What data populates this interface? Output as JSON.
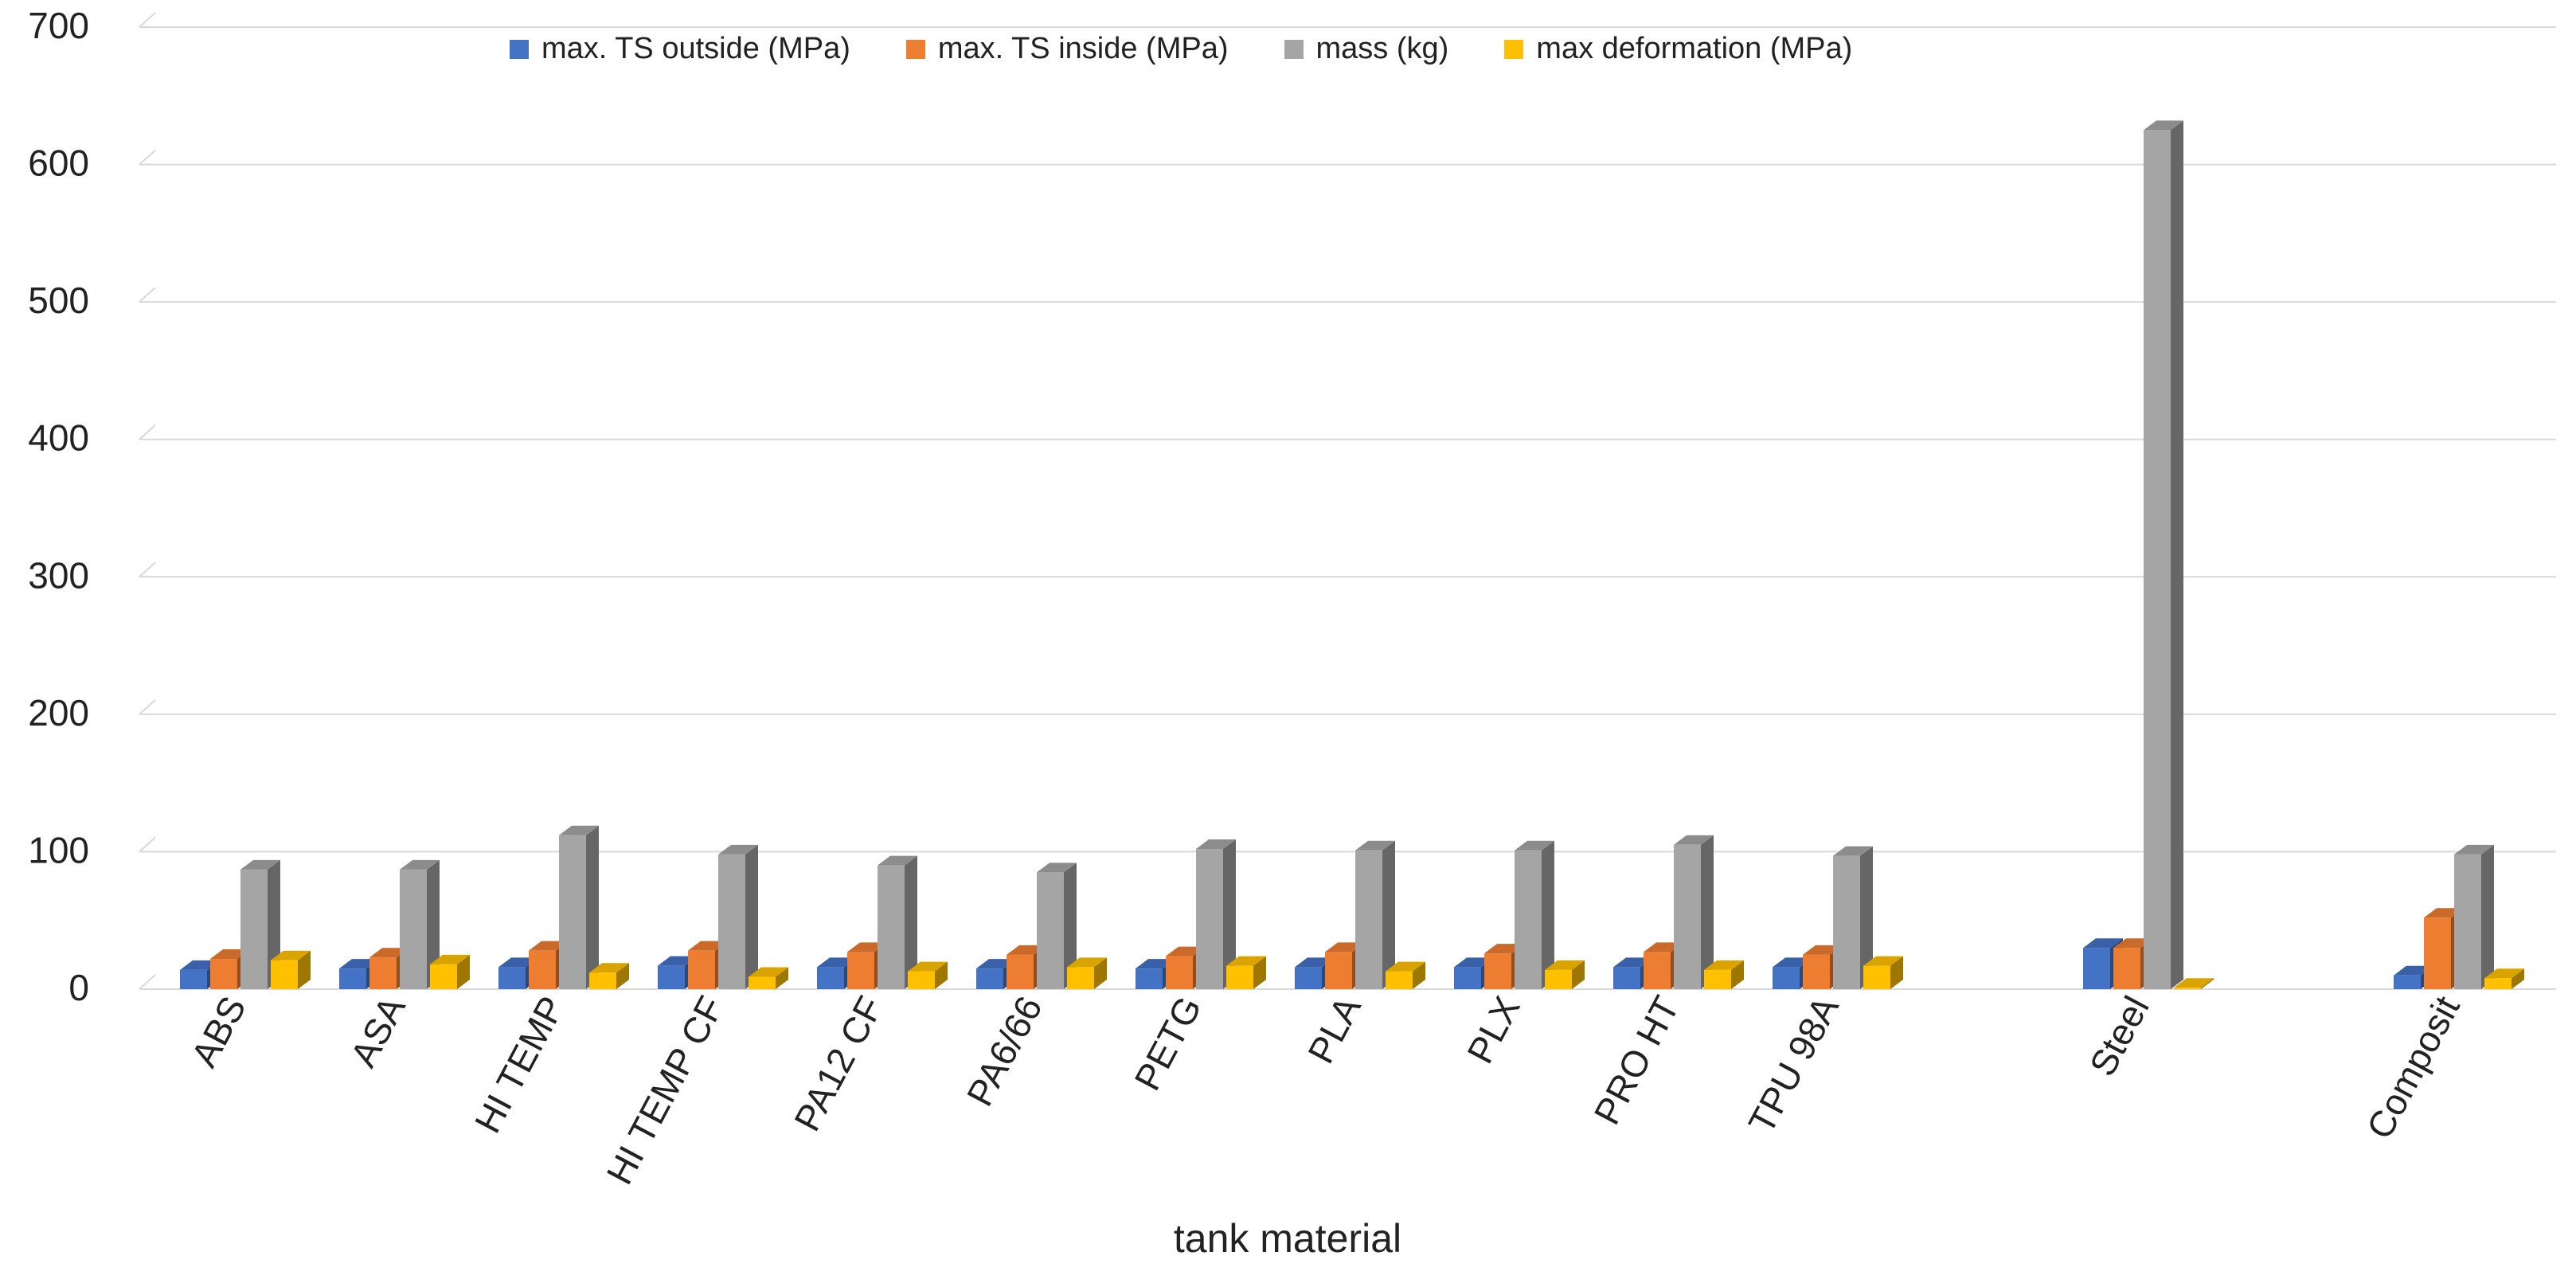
{
  "chart_data": {
    "type": "bar",
    "style": "3d-clustered-column",
    "title": "",
    "xlabel": "tank material",
    "ylabel": "",
    "ylim": [
      0,
      700
    ],
    "yticks": [
      0,
      100,
      200,
      300,
      400,
      500,
      600,
      700
    ],
    "grid": true,
    "legend_position": "top",
    "categories": [
      "ABS",
      "ASA",
      "HI TEMP",
      "HI TEMP CF",
      "PA12 CF",
      "PA6/66",
      "PETG",
      "PLA",
      "PLX",
      "PRO HT",
      "TPU 98A",
      "Steel",
      "Composit"
    ],
    "series": [
      {
        "name": "max. TS outside (MPa)",
        "color": "#4472C4",
        "values": [
          14,
          15,
          16,
          17,
          16,
          15,
          15,
          16,
          16,
          16,
          16,
          30,
          10
        ]
      },
      {
        "name": "max. TS inside (MPa)",
        "color": "#ED7D31",
        "values": [
          22,
          23,
          28,
          28,
          27,
          25,
          24,
          27,
          26,
          27,
          25,
          30,
          52
        ]
      },
      {
        "name": "mass (kg)",
        "color": "#A5A5A5",
        "values": [
          87,
          87,
          112,
          98,
          90,
          85,
          102,
          101,
          101,
          105,
          97,
          625,
          98
        ]
      },
      {
        "name": "max deformation (MPa)",
        "color": "#FFC000",
        "values": [
          21,
          18,
          12,
          9,
          13,
          16,
          17,
          13,
          14,
          14,
          17,
          1,
          8
        ]
      }
    ]
  }
}
